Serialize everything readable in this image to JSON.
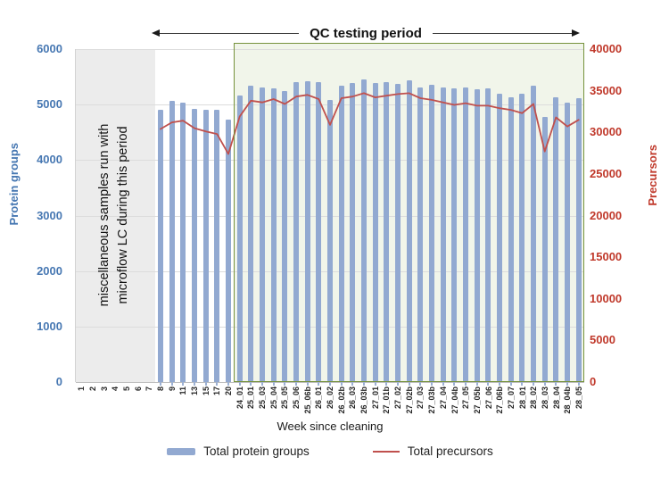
{
  "chart_data": {
    "type": "bar+line",
    "categories": [
      "1",
      "2",
      "3",
      "4",
      "5",
      "6",
      "7",
      "8",
      "9",
      "11",
      "13",
      "15",
      "17",
      "20",
      "24_01",
      "25_01",
      "25_03",
      "25_04",
      "25_05",
      "25_06",
      "25_06b",
      "26_01",
      "26_02",
      "26_02b",
      "26_03",
      "26_03b",
      "27_01",
      "27_01b",
      "27_02",
      "27_02b",
      "27_03",
      "27_03b",
      "27_04",
      "27_04b",
      "27_05",
      "27_05b",
      "27_06",
      "27_06b",
      "27_07",
      "28_01",
      "28_02",
      "28_03",
      "28_04",
      "28_04b",
      "28_05"
    ],
    "series": [
      {
        "name": "Total protein groups",
        "type": "bar",
        "axis": "left",
        "color": "#92a9d1",
        "values": [
          null,
          null,
          null,
          null,
          null,
          null,
          null,
          4910,
          5070,
          5040,
          4930,
          4900,
          4910,
          4730,
          5170,
          5340,
          5310,
          5290,
          5240,
          5410,
          5420,
          5400,
          5080,
          5340,
          5390,
          5450,
          5390,
          5400,
          5380,
          5430,
          5310,
          5360,
          5310,
          5300,
          5310,
          5270,
          5290,
          5200,
          5130,
          5200,
          5340,
          4770,
          5130,
          5040,
          5110
        ]
      },
      {
        "name": "Total precursors",
        "type": "line",
        "axis": "right",
        "color": "#c0504d",
        "values": [
          null,
          null,
          null,
          null,
          null,
          null,
          null,
          30400,
          31200,
          31400,
          30500,
          30100,
          29800,
          27400,
          31900,
          33800,
          33600,
          34000,
          33400,
          34300,
          34500,
          34000,
          30900,
          34100,
          34300,
          34700,
          34200,
          34400,
          34600,
          34700,
          34100,
          33900,
          33600,
          33300,
          33500,
          33200,
          33200,
          32900,
          32700,
          32300,
          33400,
          27700,
          31800,
          30700,
          31500
        ]
      }
    ],
    "left_axis": {
      "title": "Protein groups",
      "min": 0,
      "max": 6000,
      "step": 1000,
      "tick_labels": [
        "6000",
        "5000",
        "4000",
        "3000",
        "2000",
        "1000",
        "0"
      ],
      "color": "#4677b2"
    },
    "right_axis": {
      "title": "Precursors",
      "min": 0,
      "max": 40000,
      "step": 5000,
      "tick_labels": [
        "40000",
        "35000",
        "30000",
        "25000",
        "20000",
        "15000",
        "10000",
        "5000",
        "0"
      ],
      "color": "#c0392b"
    },
    "x_axis": {
      "title": "Week since cleaning"
    },
    "annotations": {
      "qc_label": "QC testing period",
      "note_line1": "miscellaneous samples run with",
      "note_line2": "microflow LC during this period",
      "gray_band_last_category": "7",
      "green_box_first_category": "24_01"
    },
    "legend": [
      "Total protein groups",
      "Total precursors"
    ],
    "style": {
      "bar_color": "#92a9d1",
      "line_color": "#c0504d",
      "gray_band_color": "#ececec",
      "green_box_border": "#76923c",
      "green_box_fill": "#f1f5ea",
      "gridline_color": "#dcdcdc"
    },
    "layout": {
      "grid": true,
      "legend_position": "bottom"
    }
  }
}
